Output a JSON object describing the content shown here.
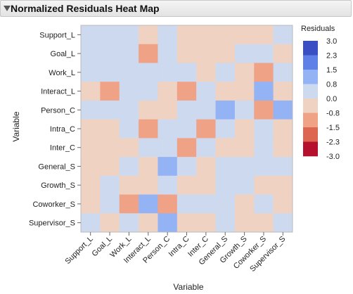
{
  "panel": {
    "title": "Normalized Residuals Heat Map"
  },
  "chart_data": {
    "type": "heatmap",
    "title": "Normalized Residuals Heat Map",
    "xlabel": "Variable",
    "ylabel": "Variable",
    "rows": [
      "Support_L",
      "Goal_L",
      "Work_L",
      "Interact_L",
      "Person_C",
      "Intra_C",
      "Inter_C",
      "General_S",
      "Growth_S",
      "Coworker_S",
      "Supervisor_S"
    ],
    "columns": [
      "Support_L",
      "Goal_L",
      "Work_L",
      "Interact_L",
      "Person_C",
      "Intra_C",
      "Inter_C",
      "General_S",
      "Growth_S",
      "Coworker_S",
      "Supervisor_S"
    ],
    "values": [
      [
        0.4,
        0.4,
        0.4,
        -0.5,
        0.4,
        -0.5,
        -0.5,
        -0.5,
        -0.5,
        -0.5,
        0.4
      ],
      [
        0.4,
        0.4,
        0.4,
        -1.2,
        0.4,
        -0.5,
        -0.5,
        -0.5,
        0.4,
        0.4,
        -0.5
      ],
      [
        0.4,
        0.4,
        0.4,
        0.4,
        0.4,
        0.4,
        -0.5,
        0.4,
        -0.5,
        -1.2,
        0.4
      ],
      [
        -0.5,
        -1.2,
        0.4,
        0.4,
        -0.5,
        -1.2,
        0.4,
        -0.5,
        -0.5,
        1.1,
        -0.5
      ],
      [
        0.4,
        0.4,
        0.4,
        -0.5,
        -0.5,
        0.4,
        0.4,
        1.1,
        0.4,
        -1.2,
        1.1
      ],
      [
        -0.5,
        -0.5,
        0.4,
        -1.2,
        0.4,
        0.4,
        -1.2,
        0.4,
        -0.5,
        0.4,
        -0.5
      ],
      [
        -0.5,
        -0.5,
        -0.5,
        0.4,
        0.4,
        -1.2,
        0.4,
        -0.5,
        -0.5,
        0.4,
        -0.5
      ],
      [
        -0.5,
        -0.5,
        0.4,
        -0.5,
        1.1,
        0.4,
        -0.5,
        0.4,
        0.4,
        0.4,
        0.4
      ],
      [
        -0.5,
        0.4,
        -0.5,
        -0.5,
        0.4,
        -0.5,
        -0.5,
        0.4,
        0.4,
        -0.5,
        -0.5
      ],
      [
        -0.5,
        0.4,
        -1.2,
        1.1,
        -1.2,
        0.4,
        0.4,
        0.4,
        -0.5,
        0.4,
        -0.5
      ],
      [
        0.4,
        -0.5,
        0.4,
        -0.5,
        1.1,
        -0.5,
        -0.5,
        0.4,
        -0.5,
        -0.5,
        0.4
      ]
    ],
    "legend": {
      "title": "Residuals",
      "position": "right",
      "ticks": [
        "3.0",
        "2.3",
        "1.5",
        "0.8",
        "0.0",
        "-0.8",
        "-1.5",
        "-2.3",
        "-3.0"
      ],
      "bands": [
        {
          "min": 2.3,
          "max": 3.0,
          "color": "#3a4fc4"
        },
        {
          "min": 1.5,
          "max": 2.3,
          "color": "#5f80e6"
        },
        {
          "min": 0.8,
          "max": 1.5,
          "color": "#94b3f5"
        },
        {
          "min": 0.0,
          "max": 0.8,
          "color": "#cdd9ef"
        },
        {
          "min": -0.8,
          "max": 0.0,
          "color": "#f0d2c2"
        },
        {
          "min": -1.5,
          "max": -0.8,
          "color": "#f0a287"
        },
        {
          "min": -2.3,
          "max": -1.5,
          "color": "#dd6650"
        },
        {
          "min": -3.0,
          "max": -2.3,
          "color": "#b5112f"
        }
      ]
    },
    "grid": false
  }
}
